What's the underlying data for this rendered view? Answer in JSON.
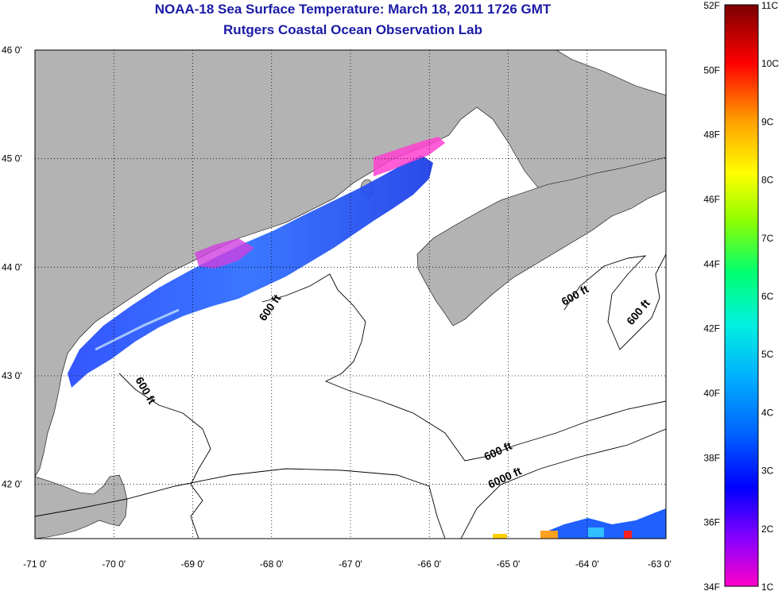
{
  "title": "NOAA-18 Sea Surface Temperature:  March 18, 2011 1726 GMT",
  "subtitle": "Rutgers Coastal Ocean Observation Lab",
  "map": {
    "lat_labels": [
      "46 0'",
      "45 0'",
      "44 0'",
      "43 0'",
      "42 0'"
    ],
    "lon_labels": [
      "-71 0'",
      "-70 0'",
      "-69 0'",
      "-68 0'",
      "-67 0'",
      "-66 0'",
      "-65 0'",
      "-64 0'",
      "-63 0'"
    ],
    "lat_range": [
      41.5,
      46.0
    ],
    "lon_range": [
      -71.0,
      -63.0
    ],
    "grid": "dotted",
    "contour_labels": [
      "600 ft",
      "600 ft",
      "600 ft",
      "600 ft",
      "600 ft",
      "6000 ft"
    ]
  },
  "colorbar": {
    "fahrenheit_labels": [
      "52F",
      "50F",
      "48F",
      "46F",
      "44F",
      "42F",
      "40F",
      "38F",
      "36F",
      "34F"
    ],
    "celsius_labels": [
      "11C",
      "10C",
      "9C",
      "8C",
      "7C",
      "6C",
      "5C",
      "4C",
      "3C",
      "2C",
      "1C"
    ],
    "colors": [
      "#ff00c8",
      "#8a00ff",
      "#0000ff",
      "#0080ff",
      "#00e5ff",
      "#00ff80",
      "#80ff00",
      "#ffff00",
      "#ffb000",
      "#ff4000",
      "#ff0000",
      "#7a0000"
    ]
  },
  "colors": {
    "land": "#b3b3b3",
    "ocean": "#ffffff",
    "title": "#1a1aa6"
  }
}
